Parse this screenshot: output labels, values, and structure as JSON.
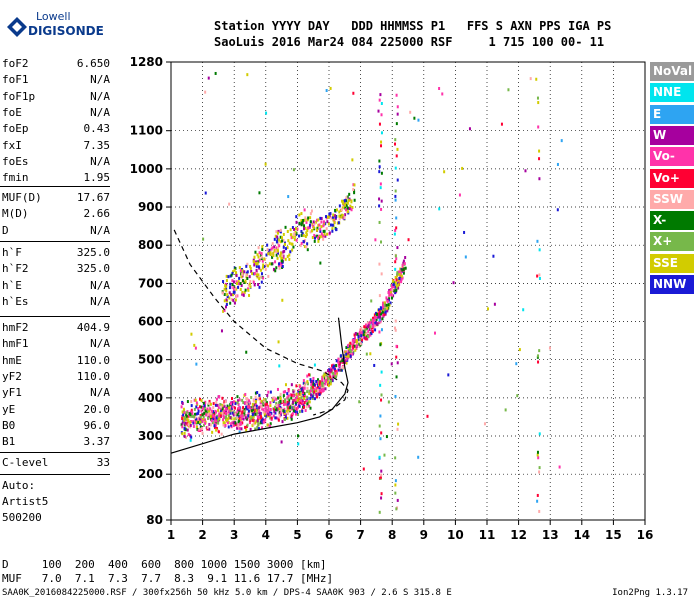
{
  "logo": {
    "line1": "Lowell",
    "line2": "DIGISONDE"
  },
  "header": {
    "line1": "Station YYYY DAY   DDD HHMMSS P1   FFS S AXN PPS IGA PS",
    "line2": "SaoLuis 2016 Mar24 084 225000 RSF     1 715 100 00- 11"
  },
  "params_group1": [
    {
      "name": "foF2",
      "value": "6.650"
    },
    {
      "name": "foF1",
      "value": "N/A"
    },
    {
      "name": "foF1p",
      "value": "N/A"
    },
    {
      "name": "foE",
      "value": "N/A"
    },
    {
      "name": "foEp",
      "value": "0.43"
    },
    {
      "name": "fxI",
      "value": "7.35"
    },
    {
      "name": "foEs",
      "value": "N/A"
    },
    {
      "name": "fmin",
      "value": "1.95"
    }
  ],
  "params_group2": [
    {
      "name": "MUF(D)",
      "value": "17.67"
    },
    {
      "name": "M(D)",
      "value": "2.66"
    },
    {
      "name": "D",
      "value": "N/A"
    }
  ],
  "params_group3": [
    {
      "name": "h`F",
      "value": "325.0"
    },
    {
      "name": "h`F2",
      "value": "325.0"
    },
    {
      "name": "h`E",
      "value": "N/A"
    },
    {
      "name": "h`Es",
      "value": "N/A"
    }
  ],
  "params_group4": [
    {
      "name": "hmF2",
      "value": "404.9"
    },
    {
      "name": "hmF1",
      "value": "N/A"
    },
    {
      "name": "hmE",
      "value": "110.0"
    },
    {
      "name": "yF2",
      "value": "110.0"
    },
    {
      "name": "yF1",
      "value": "N/A"
    },
    {
      "name": "yE",
      "value": "20.0"
    },
    {
      "name": "B0",
      "value": "96.0"
    },
    {
      "name": "B1",
      "value": "3.37"
    }
  ],
  "clevel": {
    "name": "C-level",
    "value": "33"
  },
  "autoscaling": {
    "line1": "Auto:",
    "line2": "Artist5",
    "line3": "500200"
  },
  "muf_table": {
    "d_line": "D     100  200  400  600  800 1000 1500 3000 [km]",
    "muf_line": "MUF   7.0  7.1  7.3  7.7  8.3  9.1 11.6 17.7 [MHz]"
  },
  "footer": {
    "left": "SAA0K_2016084225000.RSF / 300fx256h 50 kHz 5.0 km / DPS-4 SAA0K 903 / 2.6 S 315.8 E",
    "right": "Ion2Png 1.3.17"
  },
  "legend": [
    {
      "label": "NoVal",
      "color": "#9a9a9a"
    },
    {
      "label": "NNE",
      "color": "#00e5ee"
    },
    {
      "label": "E",
      "color": "#2ea4f2"
    },
    {
      "label": "W",
      "color": "#a6009e"
    },
    {
      "label": "Vo-",
      "color": "#ff33aa"
    },
    {
      "label": "Vo+",
      "color": "#ff0033"
    },
    {
      "label": "SSW",
      "color": "#ffaaaa"
    },
    {
      "label": "X-",
      "color": "#007a00"
    },
    {
      "label": "X+",
      "color": "#77b84a"
    },
    {
      "label": "SSE",
      "color": "#d2cc00"
    },
    {
      "label": "NNW",
      "color": "#1a1ad6"
    }
  ],
  "chart_data": {
    "type": "scatter",
    "x_ticks": [
      1,
      2,
      3,
      4,
      5,
      6,
      7,
      8,
      9,
      10,
      11,
      12,
      13,
      14,
      15,
      16
    ],
    "y_ticks": [
      80,
      200,
      300,
      400,
      500,
      600,
      700,
      800,
      900,
      1000,
      1100,
      1280
    ],
    "xlim": [
      1,
      16
    ],
    "ylim": [
      80,
      1280
    ],
    "grid": true,
    "o_trace": [
      [
        1.3,
        335
      ],
      [
        2.0,
        345
      ],
      [
        3.0,
        350
      ],
      [
        4.0,
        360
      ],
      [
        5.0,
        390
      ],
      [
        5.5,
        420
      ],
      [
        6.0,
        460
      ],
      [
        6.4,
        500
      ],
      [
        6.8,
        550
      ],
      [
        7.2,
        580
      ],
      [
        7.5,
        610
      ],
      [
        7.8,
        650
      ],
      [
        8.0,
        690
      ],
      [
        8.2,
        720
      ],
      [
        8.4,
        760
      ]
    ],
    "second_hop": [
      [
        2.6,
        660
      ],
      [
        3.2,
        700
      ],
      [
        4.0,
        750
      ],
      [
        5.0,
        820
      ],
      [
        5.8,
        850
      ],
      [
        6.3,
        880
      ],
      [
        6.8,
        940
      ]
    ],
    "profile_solid": [
      [
        1.0,
        255
      ],
      [
        2.0,
        280
      ],
      [
        3.0,
        305
      ],
      [
        4.0,
        320
      ],
      [
        5.0,
        335
      ],
      [
        5.7,
        350
      ],
      [
        6.1,
        370
      ],
      [
        6.5,
        410
      ],
      [
        6.6,
        440
      ],
      [
        6.5,
        480
      ],
      [
        6.4,
        540
      ],
      [
        6.3,
        610
      ]
    ],
    "profile_dashed": [
      [
        1.1,
        840
      ],
      [
        1.6,
        750
      ],
      [
        2.4,
        660
      ],
      [
        3.0,
        600
      ],
      [
        4.0,
        530
      ],
      [
        5.0,
        490
      ],
      [
        5.8,
        470
      ],
      [
        6.4,
        440
      ],
      [
        6.6,
        420
      ],
      [
        6.5,
        395
      ],
      [
        6.1,
        370
      ],
      [
        5.5,
        355
      ]
    ]
  }
}
